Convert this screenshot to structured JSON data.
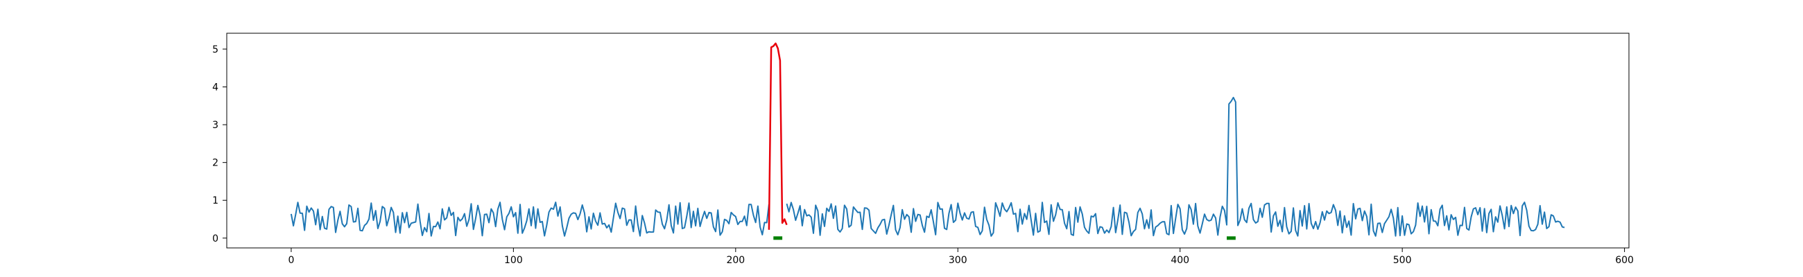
{
  "chart_data": {
    "type": "line",
    "title": "",
    "xlabel": "",
    "ylabel": "",
    "xlim": [
      -29,
      602
    ],
    "ylim": [
      -0.26,
      5.42
    ],
    "xticks": [
      "0",
      "100",
      "200",
      "300",
      "400",
      "500",
      "600"
    ],
    "yticks": [
      "0",
      "1",
      "2",
      "3",
      "4",
      "5"
    ],
    "grid": false,
    "legend": "none",
    "colors": {
      "series": "#1f77b4",
      "highlight": "#e8000b",
      "marker": "#008000"
    },
    "series": [
      {
        "style": "noisy-baseline",
        "x_start": 0,
        "x_end": 573,
        "baseline_range": [
          0.0,
          0.95
        ],
        "color": "#1f77b4",
        "spikes": [
          {
            "x": [
              421,
              422,
              423,
              424,
              425
            ],
            "y": [
              0.35,
              3.55,
              3.62,
              3.72,
              3.6
            ]
          }
        ]
      },
      {
        "style": "highlight",
        "color": "#e8000b",
        "x": [
          215,
          216,
          217,
          218,
          219,
          220,
          221,
          222,
          223
        ],
        "y": [
          0.22,
          5.05,
          5.08,
          5.15,
          5.02,
          4.7,
          0.4,
          0.5,
          0.35
        ]
      }
    ],
    "markers": [
      {
        "x_start": 217,
        "x_end": 221,
        "y": 0.0,
        "color": "#008000"
      },
      {
        "x_start": 421,
        "x_end": 425,
        "y": 0.0,
        "color": "#008000"
      }
    ]
  }
}
